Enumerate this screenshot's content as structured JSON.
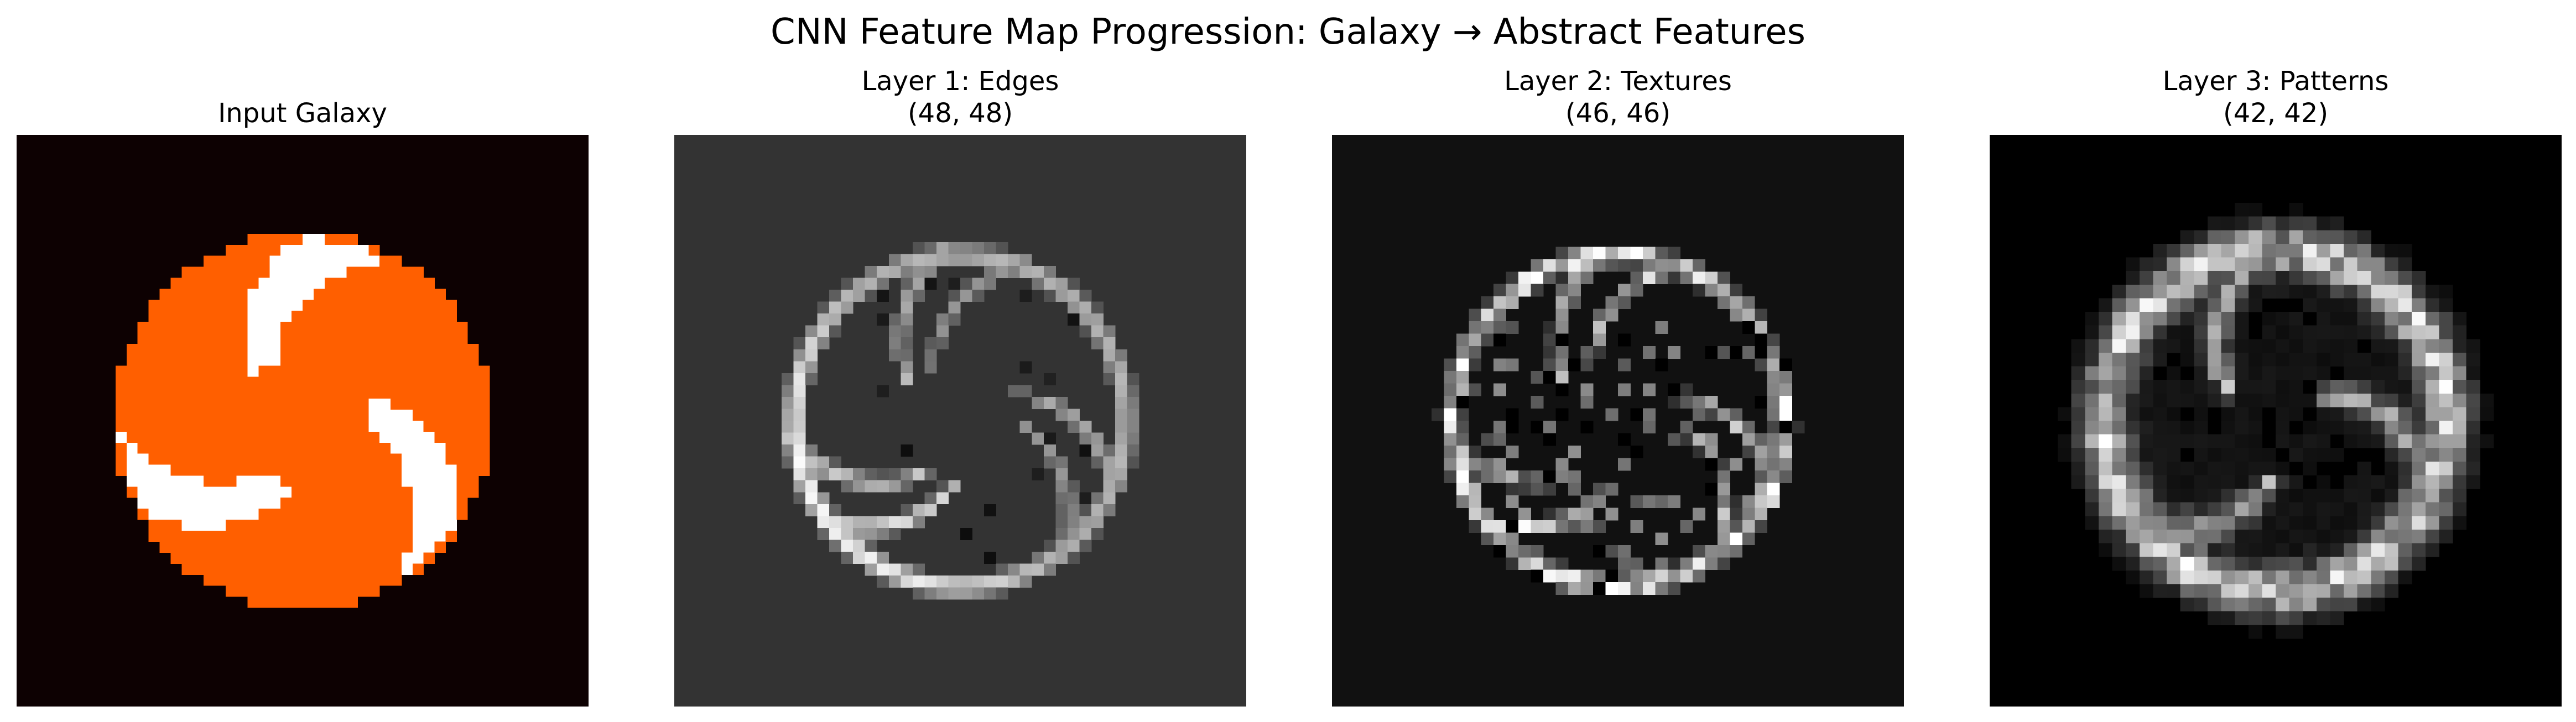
{
  "title": "CNN Feature Map Progression: Galaxy → Abstract Features",
  "chart_data": [
    {
      "type": "heatmap",
      "title": "Input Galaxy",
      "grid_size": 52,
      "colormap": "gist_heat",
      "colors": {
        "background": "#0d0102",
        "arm": "#ff5f00",
        "gap": "#ffffff"
      },
      "arms": 3,
      "disk_radius": 0.66
    },
    {
      "type": "heatmap",
      "title_line1": "Layer 1: Edges",
      "title_line2": "(48, 48)",
      "shape": [
        48,
        48
      ],
      "colormap": "gray",
      "colors": {
        "background": "#333333"
      },
      "feature": "edges"
    },
    {
      "type": "heatmap",
      "title_line1": "Layer 2: Textures",
      "title_line2": "(46, 46)",
      "shape": [
        46,
        46
      ],
      "colormap": "gray",
      "colors": {
        "background": "#111111"
      },
      "feature": "textures"
    },
    {
      "type": "heatmap",
      "title_line1": "Layer 3: Patterns",
      "title_line2": "(42, 42)",
      "shape": [
        42,
        42
      ],
      "colormap": "gray",
      "colors": {
        "background": "#000000"
      },
      "feature": "patterns"
    }
  ]
}
